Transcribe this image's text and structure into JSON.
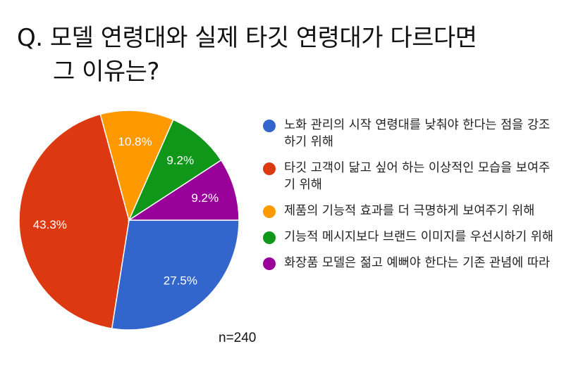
{
  "title": {
    "line1": "Q. 모델 연령대와 실제 타깃 연령대가 다르다면",
    "line2": "그 이유는?"
  },
  "sample_label": "n=240",
  "chart_data": {
    "type": "pie",
    "title": "Q. 모델 연령대와 실제 타깃 연령대가 다르다면 그 이유는?",
    "legend_position": "right",
    "slices": [
      {
        "label": "노화 관리의 시작 연령대를 낮춰야 한다는 점을 강조하기 위해",
        "value": 27.5,
        "value_label": "27.5%",
        "color": "#3366cc"
      },
      {
        "label": "타깃 고객이 닮고 싶어 하는 이상적인 모습을 보여주기 위해",
        "value": 43.3,
        "value_label": "43.3%",
        "color": "#dc3912"
      },
      {
        "label": "제품의 기능적 효과를 더 극명하게 보여주기 위해",
        "value": 10.8,
        "value_label": "10.8%",
        "color": "#ff9900"
      },
      {
        "label": "기능적 메시지보다 브랜드 이미지를 우선시하기 위해",
        "value": 9.2,
        "value_label": "9.2%",
        "color": "#109618"
      },
      {
        "label": "화장품 모델은 젊고 예뻐야 한다는 기존 관념에 따라",
        "value": 9.2,
        "value_label": "9.2%",
        "color": "#990099"
      }
    ]
  }
}
